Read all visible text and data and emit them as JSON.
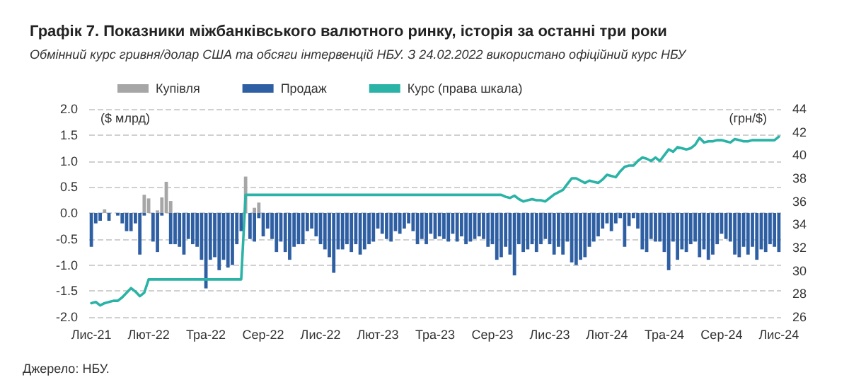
{
  "chart_data": {
    "type": "bar",
    "title": "Графік 7. Показники міжбанківського валютного ринку, історія за останні три роки",
    "subtitle": "Обмінний курс гривня/долар США та обсяги інтервенцій НБУ. З 24.02.2022 використано офіційний курс НБУ",
    "ylabel": "($ млрд)",
    "y2label": "(грн/$)",
    "annotations": [
      "Джерело: НБУ."
    ],
    "categories": [
      "Лис-21",
      null,
      null,
      null,
      null,
      null,
      null,
      null,
      null,
      null,
      null,
      null,
      null,
      "Лют-22",
      null,
      null,
      null,
      null,
      null,
      null,
      null,
      null,
      null,
      null,
      null,
      null,
      "Тра-22",
      null,
      null,
      null,
      null,
      null,
      null,
      null,
      null,
      null,
      null,
      null,
      null,
      "Сер-22",
      null,
      null,
      null,
      null,
      null,
      null,
      null,
      null,
      null,
      null,
      null,
      null,
      "Лис-22",
      null,
      null,
      null,
      null,
      null,
      null,
      null,
      null,
      null,
      null,
      null,
      null,
      "Лют-23",
      null,
      null,
      null,
      null,
      null,
      null,
      null,
      null,
      null,
      null,
      null,
      null,
      "Тра-23",
      null,
      null,
      null,
      null,
      null,
      null,
      null,
      null,
      null,
      null,
      null,
      null,
      "Сер-23",
      null,
      null,
      null,
      null,
      null,
      null,
      null,
      null,
      null,
      null,
      null,
      null,
      "Лис-23",
      null,
      null,
      null,
      null,
      null,
      null,
      null,
      null,
      null,
      null,
      null,
      null,
      "Лют-24",
      null,
      null,
      null,
      null,
      null,
      null,
      null,
      null,
      null,
      null,
      null,
      null,
      "Тра-24",
      null,
      null,
      null,
      null,
      null,
      null,
      null,
      null,
      null,
      null,
      null,
      null,
      "Сер-24",
      null,
      null,
      null,
      null,
      null,
      null,
      null,
      null,
      null,
      null,
      null,
      null,
      "Лис-24"
    ],
    "series": [
      {
        "name": "Купівля",
        "color": "#a6a6a6",
        "values": [
          null,
          null,
          null,
          0.07,
          null,
          null,
          null,
          null,
          null,
          null,
          null,
          null,
          0.35,
          0.28,
          null,
          0.05,
          0.3,
          0.6,
          0.23,
          null,
          null,
          null,
          null,
          null,
          null,
          null,
          null,
          null,
          null,
          null,
          null,
          null,
          null,
          null,
          null,
          0.7,
          null,
          0.1,
          0.2,
          null,
          null,
          null,
          null,
          null,
          null,
          null,
          null,
          null,
          null,
          null,
          null,
          null,
          null,
          null,
          null,
          null,
          null,
          null,
          null,
          null,
          null,
          null,
          null,
          null,
          null,
          null,
          null,
          null,
          null,
          null,
          null,
          null,
          null,
          null,
          null,
          null,
          null,
          null,
          null,
          null,
          null,
          null,
          null,
          null,
          null,
          null,
          null,
          null,
          null,
          null,
          null,
          null,
          null,
          null,
          null,
          null,
          null,
          null,
          null,
          null,
          null,
          null,
          null,
          null,
          null,
          null,
          null,
          null,
          null,
          null,
          null,
          null,
          null,
          null,
          null,
          null,
          null,
          null,
          null,
          null,
          null,
          null,
          null,
          null,
          null,
          null,
          null,
          null,
          null,
          null,
          null,
          null,
          null,
          null,
          null,
          null,
          null,
          null,
          null,
          null,
          null,
          null,
          null,
          null,
          null,
          null,
          null,
          null,
          null,
          null,
          null,
          null,
          null,
          null,
          null,
          null,
          null
        ]
      },
      {
        "name": "Продаж",
        "color": "#2e5fa3",
        "values": [
          -0.65,
          -0.2,
          -0.15,
          null,
          -0.15,
          null,
          -0.05,
          -0.2,
          -0.35,
          -0.35,
          -0.2,
          -0.8,
          -0.05,
          null,
          -0.55,
          -0.75,
          -0.05,
          null,
          -0.6,
          -0.6,
          -0.65,
          -0.8,
          -0.5,
          -0.6,
          -0.65,
          -0.9,
          -1.45,
          -0.9,
          -0.85,
          -1.1,
          -0.9,
          -1.05,
          -1.0,
          -0.6,
          -0.35,
          null,
          -0.5,
          -0.55,
          -0.1,
          -0.45,
          -0.3,
          -0.5,
          -0.75,
          -0.55,
          -0.75,
          -0.9,
          -0.65,
          -0.6,
          -0.6,
          -0.35,
          -0.3,
          -0.45,
          -0.6,
          -0.7,
          -0.85,
          -1.15,
          -0.7,
          -0.7,
          -0.6,
          -0.75,
          -0.6,
          -0.8,
          -0.7,
          -0.6,
          -0.55,
          -0.3,
          -0.4,
          -0.5,
          -0.55,
          -0.35,
          -0.4,
          -0.3,
          -0.2,
          -0.35,
          -0.6,
          -0.5,
          -0.6,
          -0.4,
          -0.5,
          -0.45,
          -0.5,
          -0.55,
          -0.4,
          -0.55,
          -0.45,
          -0.6,
          -0.55,
          -0.5,
          -0.45,
          -0.5,
          -0.65,
          -0.6,
          -0.9,
          -0.85,
          -0.65,
          -0.8,
          -1.2,
          -0.6,
          -0.75,
          -0.7,
          -0.6,
          -0.75,
          -0.6,
          -0.5,
          -0.6,
          -0.8,
          -0.65,
          -0.8,
          -0.55,
          -0.95,
          -1.0,
          -0.9,
          -0.85,
          -0.65,
          -0.55,
          -0.45,
          -0.3,
          -0.2,
          -0.35,
          -0.2,
          -0.1,
          -0.65,
          -0.25,
          -0.1,
          -0.3,
          -0.7,
          -0.75,
          -0.5,
          -0.55,
          -0.55,
          -0.75,
          -1.1,
          -0.55,
          -0.9,
          -0.7,
          -0.75,
          -0.6,
          -0.55,
          -0.85,
          -0.7,
          -0.9,
          -0.8,
          -0.6,
          -0.4,
          -0.5,
          -0.55,
          -0.8,
          -0.85,
          -0.65,
          -0.8,
          -0.65,
          -0.9,
          -0.7,
          -0.75,
          -0.6,
          -0.65,
          -0.75
        ]
      },
      {
        "name": "Курс (права шкала)",
        "type": "line",
        "axis": "y2",
        "color": "#2ab3a6",
        "values": [
          27.2,
          27.3,
          27.0,
          27.2,
          27.3,
          27.4,
          27.4,
          27.7,
          28.1,
          28.5,
          28.2,
          27.8,
          28.1,
          29.25,
          29.25,
          29.25,
          29.25,
          29.25,
          29.25,
          29.25,
          29.25,
          29.25,
          29.25,
          29.25,
          29.25,
          29.25,
          29.25,
          29.25,
          29.25,
          29.25,
          29.25,
          29.25,
          29.25,
          29.25,
          29.25,
          36.57,
          36.57,
          36.57,
          36.57,
          36.57,
          36.57,
          36.57,
          36.57,
          36.57,
          36.57,
          36.57,
          36.57,
          36.57,
          36.57,
          36.57,
          36.57,
          36.57,
          36.57,
          36.57,
          36.57,
          36.57,
          36.57,
          36.57,
          36.57,
          36.57,
          36.57,
          36.57,
          36.57,
          36.57,
          36.57,
          36.57,
          36.57,
          36.57,
          36.57,
          36.57,
          36.57,
          36.57,
          36.57,
          36.57,
          36.57,
          36.57,
          36.57,
          36.57,
          36.57,
          36.57,
          36.57,
          36.57,
          36.57,
          36.57,
          36.57,
          36.57,
          36.57,
          36.57,
          36.57,
          36.57,
          36.57,
          36.57,
          36.57,
          36.57,
          36.4,
          36.3,
          36.5,
          36.2,
          36.0,
          36.1,
          36.2,
          36.1,
          36.1,
          36.0,
          36.3,
          36.6,
          36.8,
          37.0,
          37.5,
          38.0,
          38.0,
          37.8,
          37.6,
          37.8,
          37.7,
          37.6,
          37.9,
          38.3,
          38.2,
          38.1,
          38.6,
          39.0,
          39.1,
          39.1,
          39.5,
          39.8,
          39.7,
          39.5,
          39.8,
          39.5,
          40.0,
          40.5,
          40.3,
          40.7,
          40.6,
          40.5,
          40.6,
          40.9,
          41.5,
          41.1,
          41.2,
          41.2,
          41.3,
          41.3,
          41.2,
          41.1,
          41.4,
          41.3,
          41.2,
          41.2,
          41.3,
          41.3,
          41.3,
          41.3,
          41.3,
          41.3,
          41.6
        ]
      }
    ],
    "ylim": [
      -2.0,
      2.0
    ],
    "yticks": [
      {
        "value": -2,
        "label": "-2.0"
      },
      {
        "value": -1.5,
        "label": "-1.5"
      },
      {
        "value": -1,
        "label": "-1.0"
      },
      {
        "value": -0.5,
        "label": "-0.5"
      },
      {
        "value": 0,
        "label": "0.0"
      },
      {
        "value": 0.5,
        "label": "0.5"
      },
      {
        "value": 1,
        "label": "1.0"
      },
      {
        "value": 1.5,
        "label": "1.5"
      },
      {
        "value": 2,
        "label": "2.0"
      }
    ],
    "y2lim": [
      26,
      44
    ],
    "y2ticks": [
      26,
      28,
      30,
      32,
      34,
      36,
      38,
      40,
      42,
      44
    ],
    "grid": "y",
    "legend": "top left",
    "marker": "none",
    "line_style": "solid"
  }
}
